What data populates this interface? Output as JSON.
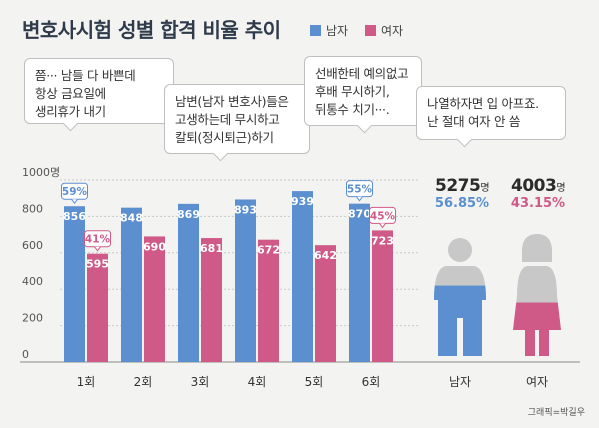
{
  "title": "변호사시험 성별 합격 비율 추이",
  "legend": [
    {
      "label": "남자",
      "color": "#5b8fd0"
    },
    {
      "label": "여자",
      "color": "#d05a87"
    }
  ],
  "bubbles": [
    {
      "lines": [
        "쯤··· 남들 다 바쁜데",
        "항상 금요일에",
        "생리휴가 내기"
      ]
    },
    {
      "lines": [
        "남변(남자 변호사)들은",
        "고생하는데 무시하고",
        "칼퇴(정시퇴근)하기"
      ]
    },
    {
      "lines": [
        "선배한테 예의없고",
        "후배 무시하기,",
        "뒤통수 치기···."
      ]
    },
    {
      "lines": [
        "나열하자면 입 아프죠.",
        "난 절대 여자 안 씀"
      ]
    }
  ],
  "chart_data": {
    "type": "bar",
    "categories": [
      "1회",
      "2회",
      "3회",
      "4회",
      "5회",
      "6회"
    ],
    "series": [
      {
        "name": "남자",
        "values": [
          856,
          848,
          869,
          893,
          939,
          870
        ],
        "color": "#5b8fd0"
      },
      {
        "name": "여자",
        "values": [
          595,
          690,
          681,
          672,
          642,
          723
        ],
        "color": "#d05a87"
      }
    ],
    "y_ticks": [
      "0",
      "200",
      "400",
      "600",
      "800",
      "1000명"
    ],
    "ylim": [
      0,
      1000
    ],
    "annotations": [
      {
        "category": "1회",
        "series": "남자",
        "text": "59%"
      },
      {
        "category": "1회",
        "series": "여자",
        "text": "41%"
      },
      {
        "category": "6회",
        "series": "남자",
        "text": "55%"
      },
      {
        "category": "6회",
        "series": "여자",
        "text": "45%"
      }
    ]
  },
  "totals": [
    {
      "label": "남자",
      "count": "5275",
      "unit": "명",
      "percent": "56.85%",
      "color": "#5b8fd0",
      "share": 0.5685
    },
    {
      "label": "여자",
      "count": "4003",
      "unit": "명",
      "percent": "43.15%",
      "color": "#d05a87",
      "share": 0.4315
    }
  ],
  "credit": "그래픽=박길우"
}
